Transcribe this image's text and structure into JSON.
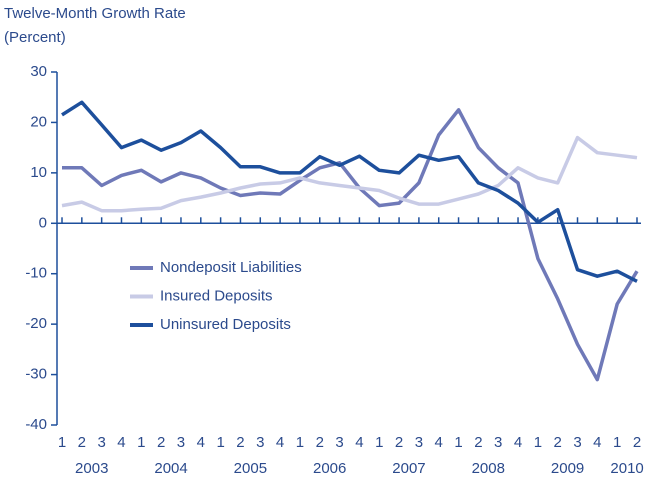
{
  "chart_data": {
    "type": "line",
    "title": "Twelve-Month Growth Rate",
    "subtitle": "(Percent)",
    "categories": [
      "1",
      "2",
      "3",
      "4",
      "1",
      "2",
      "3",
      "4",
      "1",
      "2",
      "3",
      "4",
      "1",
      "2",
      "3",
      "4",
      "1",
      "2",
      "3",
      "4",
      "1",
      "2",
      "3",
      "4",
      "1",
      "2",
      "3",
      "4",
      "1",
      "2"
    ],
    "x_groups": [
      "2003",
      "2004",
      "2005",
      "2006",
      "2007",
      "2008",
      "2009",
      "2010"
    ],
    "series": [
      {
        "name": "Nondeposit Liabilities",
        "color": "#6f79b8",
        "values": [
          11,
          11,
          7.5,
          9.5,
          10.5,
          8.2,
          10,
          9,
          7,
          5.5,
          6,
          5.8,
          8.5,
          11,
          12,
          7,
          3.5,
          4,
          8,
          17.5,
          22.5,
          15,
          11,
          8,
          -7,
          -15,
          -24,
          -31,
          -16,
          -9.5
        ]
      },
      {
        "name": "Insured Deposits",
        "color": "#c8cbe6",
        "values": [
          3.5,
          4.2,
          2.5,
          2.5,
          2.8,
          3,
          4.5,
          5.2,
          6,
          7,
          7.8,
          8,
          9,
          8,
          7.5,
          7,
          6.5,
          5,
          3.8,
          3.8,
          4.8,
          5.8,
          7.5,
          11,
          9,
          8,
          17,
          14,
          13.5,
          13
        ]
      },
      {
        "name": "Uninsured Deposits",
        "color": "#1d4f9c",
        "values": [
          21.5,
          24,
          19.5,
          15,
          16.5,
          14.5,
          16,
          18.3,
          15,
          11.2,
          11.2,
          10,
          10,
          13.2,
          11.5,
          13.3,
          10.5,
          10,
          13.5,
          12.5,
          13.2,
          8,
          6.5,
          4,
          0.2,
          2.7,
          -9.2,
          -10.5,
          -9.5,
          -11.5
        ]
      }
    ],
    "ylim": [
      -40,
      30
    ],
    "yticks": [
      -40,
      -30,
      -20,
      -10,
      0,
      10,
      20,
      30
    ],
    "legend": "center-left"
  }
}
